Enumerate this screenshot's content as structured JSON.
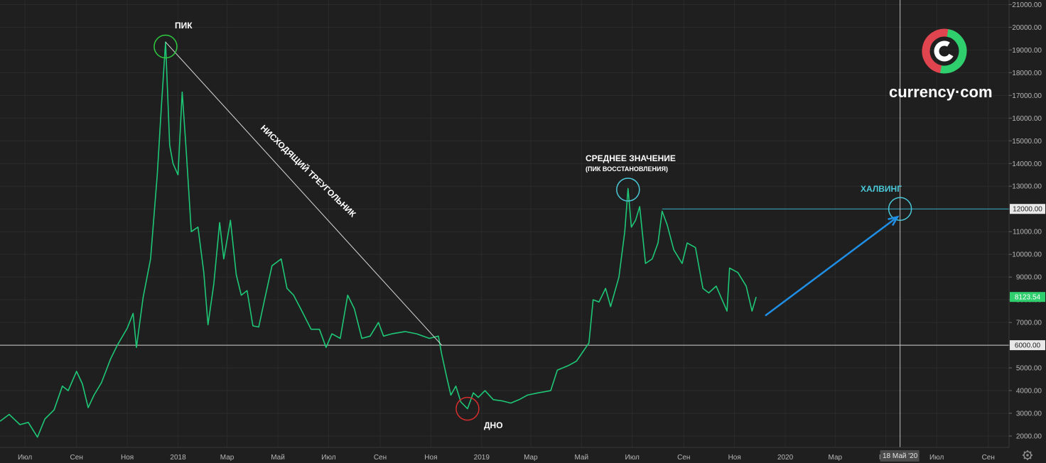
{
  "brand": {
    "name": "currency·com",
    "colors": {
      "red": "#e0454f",
      "green": "#2fcf6e"
    }
  },
  "annotations": {
    "peak": "ПИК",
    "bottom": "ДНО",
    "triangle": "НИСХОДЯЩИЙ ТРЕУГОЛЬНИК",
    "average": "СРЕДНЕЕ ЗНАЧЕНИЕ",
    "average_sub": "(ПИК ВОССТАНОВЛЕНИЯ)",
    "halving": "ХАЛВИНГ"
  },
  "cursor": {
    "date_label": "18 Май '20"
  },
  "settings_icon": "gear-icon",
  "chart_data": {
    "type": "line",
    "series_color": "#1ec776",
    "x_labels": [
      "Июл",
      "Сен",
      "Ноя",
      "2018",
      "Мар",
      "Май",
      "Июл",
      "Сен",
      "Ноя",
      "2019",
      "Мар",
      "Май",
      "Июл",
      "Сен",
      "Ноя",
      "2020",
      "Мар",
      "Май",
      "Июл",
      "Сен"
    ],
    "x_label_dates": [
      "2017-07-01",
      "2017-09-01",
      "2017-11-01",
      "2018-01-01",
      "2018-03-01",
      "2018-05-01",
      "2018-07-01",
      "2018-09-01",
      "2018-11-01",
      "2019-01-01",
      "2019-03-01",
      "2019-05-01",
      "2019-07-01",
      "2019-09-01",
      "2019-11-01",
      "2020-01-01",
      "2020-03-01",
      "2020-05-01",
      "2020-07-01",
      "2020-09-01"
    ],
    "y_ticks": [
      2000,
      3000,
      4000,
      5000,
      6000,
      7000,
      8000,
      9000,
      10000,
      11000,
      12000,
      13000,
      14000,
      15000,
      16000,
      17000,
      18000,
      19000,
      20000,
      21000
    ],
    "y_tick_labels": [
      "2000.00",
      "3000.00",
      "4000.00",
      "5000.00",
      "6000.00",
      "7000.00",
      "8000.00",
      "9000.00",
      "10000.00",
      "11000.00",
      "12000.00",
      "13000.00",
      "14000.00",
      "15000.00",
      "16000.00",
      "17000.00",
      "18000.00",
      "19000.00",
      "20000.00",
      "21000.00"
    ],
    "y_range": [
      1500,
      21200
    ],
    "x_range": [
      "2017-06-01",
      "2020-09-26"
    ],
    "grid": true,
    "points": [
      [
        "2017-06-01",
        2650
      ],
      [
        "2017-06-12",
        2950
      ],
      [
        "2017-06-25",
        2500
      ],
      [
        "2017-07-05",
        2600
      ],
      [
        "2017-07-16",
        1950
      ],
      [
        "2017-07-25",
        2750
      ],
      [
        "2017-08-05",
        3150
      ],
      [
        "2017-08-15",
        4200
      ],
      [
        "2017-08-22",
        4000
      ],
      [
        "2017-09-01",
        4850
      ],
      [
        "2017-09-08",
        4300
      ],
      [
        "2017-09-15",
        3250
      ],
      [
        "2017-09-22",
        3800
      ],
      [
        "2017-10-01",
        4350
      ],
      [
        "2017-10-12",
        5400
      ],
      [
        "2017-10-20",
        6000
      ],
      [
        "2017-11-01",
        6750
      ],
      [
        "2017-11-08",
        7400
      ],
      [
        "2017-11-12",
        5900
      ],
      [
        "2017-11-20",
        8100
      ],
      [
        "2017-11-29",
        9800
      ],
      [
        "2017-12-07",
        13500
      ],
      [
        "2017-12-12",
        16500
      ],
      [
        "2017-12-17",
        19350
      ],
      [
        "2017-12-22",
        14800
      ],
      [
        "2017-12-26",
        14000
      ],
      [
        "2018-01-01",
        13500
      ],
      [
        "2018-01-06",
        17150
      ],
      [
        "2018-01-11",
        14500
      ],
      [
        "2018-01-17",
        11000
      ],
      [
        "2018-01-25",
        11200
      ],
      [
        "2018-02-01",
        9200
      ],
      [
        "2018-02-06",
        6900
      ],
      [
        "2018-02-13",
        8700
      ],
      [
        "2018-02-20",
        11400
      ],
      [
        "2018-02-25",
        9800
      ],
      [
        "2018-03-05",
        11500
      ],
      [
        "2018-03-12",
        9100
      ],
      [
        "2018-03-18",
        8200
      ],
      [
        "2018-03-25",
        8400
      ],
      [
        "2018-04-01",
        6850
      ],
      [
        "2018-04-08",
        6800
      ],
      [
        "2018-04-15",
        8000
      ],
      [
        "2018-04-24",
        9500
      ],
      [
        "2018-05-05",
        9800
      ],
      [
        "2018-05-12",
        8500
      ],
      [
        "2018-05-20",
        8200
      ],
      [
        "2018-05-30",
        7500
      ],
      [
        "2018-06-10",
        6700
      ],
      [
        "2018-06-20",
        6700
      ],
      [
        "2018-06-28",
        5900
      ],
      [
        "2018-07-05",
        6500
      ],
      [
        "2018-07-15",
        6300
      ],
      [
        "2018-07-24",
        8200
      ],
      [
        "2018-08-01",
        7600
      ],
      [
        "2018-08-10",
        6300
      ],
      [
        "2018-08-20",
        6400
      ],
      [
        "2018-08-30",
        7000
      ],
      [
        "2018-09-05",
        6400
      ],
      [
        "2018-09-15",
        6500
      ],
      [
        "2018-10-01",
        6600
      ],
      [
        "2018-10-15",
        6500
      ],
      [
        "2018-10-30",
        6300
      ],
      [
        "2018-11-10",
        6400
      ],
      [
        "2018-11-14",
        5600
      ],
      [
        "2018-11-20",
        4600
      ],
      [
        "2018-11-25",
        3800
      ],
      [
        "2018-12-01",
        4200
      ],
      [
        "2018-12-07",
        3500
      ],
      [
        "2018-12-15",
        3200
      ],
      [
        "2018-12-22",
        3900
      ],
      [
        "2018-12-28",
        3700
      ],
      [
        "2019-01-05",
        4000
      ],
      [
        "2019-01-15",
        3600
      ],
      [
        "2019-01-25",
        3550
      ],
      [
        "2019-02-05",
        3450
      ],
      [
        "2019-02-15",
        3600
      ],
      [
        "2019-02-25",
        3800
      ],
      [
        "2019-03-10",
        3900
      ],
      [
        "2019-03-25",
        4000
      ],
      [
        "2019-04-02",
        4900
      ],
      [
        "2019-04-15",
        5100
      ],
      [
        "2019-04-25",
        5300
      ],
      [
        "2019-05-10",
        6100
      ],
      [
        "2019-05-15",
        8000
      ],
      [
        "2019-05-22",
        7900
      ],
      [
        "2019-05-30",
        8500
      ],
      [
        "2019-06-05",
        7700
      ],
      [
        "2019-06-15",
        9000
      ],
      [
        "2019-06-22",
        11000
      ],
      [
        "2019-06-26",
        12900
      ],
      [
        "2019-06-30",
        11200
      ],
      [
        "2019-07-05",
        11500
      ],
      [
        "2019-07-10",
        12100
      ],
      [
        "2019-07-17",
        9600
      ],
      [
        "2019-07-25",
        9800
      ],
      [
        "2019-08-01",
        10500
      ],
      [
        "2019-08-06",
        11900
      ],
      [
        "2019-08-12",
        11300
      ],
      [
        "2019-08-20",
        10200
      ],
      [
        "2019-08-30",
        9600
      ],
      [
        "2019-09-05",
        10500
      ],
      [
        "2019-09-15",
        10300
      ],
      [
        "2019-09-24",
        8500
      ],
      [
        "2019-10-01",
        8300
      ],
      [
        "2019-10-10",
        8600
      ],
      [
        "2019-10-23",
        7500
      ],
      [
        "2019-10-26",
        9400
      ],
      [
        "2019-11-05",
        9200
      ],
      [
        "2019-11-15",
        8600
      ],
      [
        "2019-11-22",
        7500
      ],
      [
        "2019-11-27",
        8123.54
      ]
    ],
    "current_value": 8123.54,
    "current_value_label": "8123.54",
    "price_tag_color": "#2fcf6e",
    "annotation_color": "#ffffff",
    "hline_6000": {
      "value": 6000,
      "label": "6000.00"
    },
    "hline_12000": {
      "value": 12000,
      "label": "12000.00",
      "color": "#3ab0c8"
    },
    "trendline": [
      [
        "2017-12-17",
        19350
      ],
      [
        "2018-11-14",
        6000
      ]
    ],
    "peak_marker": {
      "date": "2017-12-17",
      "value": 19150,
      "color": "#2ecc40"
    },
    "bottom_marker": {
      "date": "2018-12-15",
      "value": 3200,
      "color": "#d62d2d"
    },
    "avg_marker": {
      "date": "2019-06-26",
      "value": 12850,
      "color": "#4ac8d8"
    },
    "halving_marker": {
      "date": "2020-05-18",
      "value": 12000,
      "color": "#4ac8d8"
    },
    "arrow": {
      "from": [
        "2019-12-08",
        7300
      ],
      "to": [
        "2020-05-15",
        11650
      ],
      "color": "#1f8fe6"
    },
    "cursor_date": "2020-05-18"
  }
}
